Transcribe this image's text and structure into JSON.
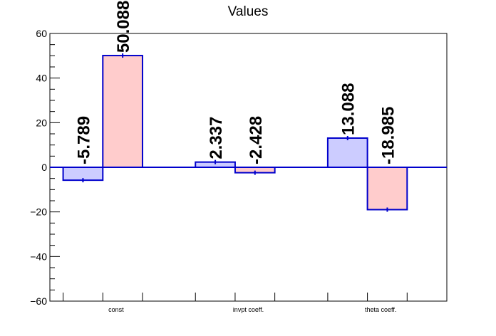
{
  "chart_data": {
    "type": "bar",
    "title": "Values",
    "categories": [
      "const",
      "invpt coeff.",
      "theta coeff."
    ],
    "series": [
      {
        "values": [
          -5.789,
          2.337,
          13.088
        ],
        "fill": "#ccccff",
        "stroke": "#0000cc"
      },
      {
        "values": [
          50.088,
          -2.428,
          -18.985
        ],
        "fill": "#ffcccc",
        "stroke": "#0000cc"
      }
    ],
    "data_labels": [
      [
        "-5.789",
        "2.337",
        "13.088"
      ],
      [
        "50.088",
        "-2.428",
        "-18.985"
      ]
    ],
    "yticks": [
      "60",
      "40",
      "20",
      "0",
      "−20",
      "−40",
      "−60"
    ],
    "ylim": [
      -60,
      60
    ],
    "grid": false,
    "legend": "none"
  }
}
